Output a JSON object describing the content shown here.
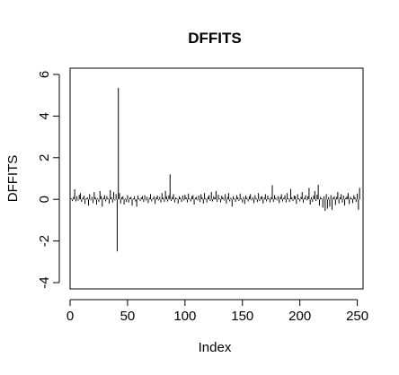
{
  "chart_data": {
    "type": "line",
    "style": "vertical lines from zero (R type='h')",
    "title": "DFFITS",
    "xlabel": "Index",
    "ylabel": "DFFITS",
    "xlim": [
      0,
      255
    ],
    "ylim": [
      -4.3,
      6.3
    ],
    "grid": false,
    "xticks": [
      0,
      50,
      100,
      150,
      200,
      250
    ],
    "yticks": [
      -4,
      -2,
      0,
      2,
      4,
      6
    ],
    "n": 252,
    "values": [
      0.05,
      -0.08,
      0.12,
      0.48,
      -0.1,
      0.15,
      -0.06,
      0.22,
      0.3,
      -0.12,
      0.08,
      0.18,
      -0.22,
      0.05,
      0.1,
      -0.3,
      0.25,
      -0.05,
      0.12,
      -0.18,
      0.35,
      0.1,
      -0.25,
      0.05,
      -0.12,
      0.4,
      0.15,
      -0.35,
      0.08,
      0.2,
      -0.1,
      0.15,
      0.05,
      -0.2,
      0.45,
      0.1,
      -0.15,
      0.35,
      -0.05,
      0.25,
      -2.5,
      5.35,
      0.3,
      -0.2,
      0.1,
      0.15,
      -0.25,
      0.05,
      -0.12,
      0.2,
      -0.15,
      0.08,
      0.12,
      -0.3,
      0.05,
      0.15,
      -0.1,
      -0.35,
      0.18,
      0.05,
      -0.08,
      0.1,
      0.15,
      -0.12,
      0.2,
      -0.05,
      0.12,
      -0.18,
      0.08,
      0.25,
      -0.1,
      0.05,
      0.15,
      -0.22,
      0.1,
      0.18,
      -0.05,
      0.12,
      -0.15,
      0.3,
      0.08,
      -0.12,
      0.4,
      0.15,
      -0.1,
      0.2,
      1.2,
      -0.08,
      0.12,
      0.25,
      -0.15,
      0.1,
      0.05,
      -0.2,
      0.15,
      0.08,
      -0.12,
      0.18,
      -0.05,
      0.22,
      0.1,
      -0.15,
      0.28,
      0.05,
      -0.1,
      0.15,
      0.2,
      -0.25,
      0.08,
      0.12,
      -0.05,
      0.18,
      -0.12,
      0.25,
      0.1,
      -0.2,
      0.3,
      0.05,
      -0.15,
      0.12,
      0.2,
      -0.08,
      0.35,
      -0.1,
      0.15,
      0.08,
      0.4,
      -0.12,
      0.22,
      0.05,
      -0.15,
      0.18,
      0.1,
      -0.05,
      0.25,
      -0.2,
      0.12,
      0.3,
      -0.1,
      0.08,
      -0.35,
      0.15,
      0.05,
      -0.12,
      0.2,
      0.1,
      -0.08,
      0.28,
      0.05,
      -0.15,
      0.12,
      -0.22,
      0.18,
      0.08,
      -0.1,
      0.15,
      0.25,
      -0.05,
      0.1,
      -0.18,
      0.2,
      0.05,
      -0.12,
      0.3,
      -0.08,
      0.12,
      0.15,
      -0.2,
      0.08,
      0.25,
      -0.1,
      0.18,
      0.05,
      -0.15,
      0.1,
      0.68,
      -0.12,
      0.2,
      0.08,
      -0.05,
      0.15,
      -0.18,
      0.12,
      0.25,
      -0.1,
      0.08,
      0.2,
      -0.15,
      0.3,
      0.05,
      -0.12,
      0.5,
      0.1,
      -0.08,
      0.18,
      0.15,
      -0.22,
      0.25,
      0.05,
      -0.1,
      0.12,
      0.35,
      -0.15,
      0.08,
      0.2,
      -0.05,
      0.15,
      0.55,
      -0.25,
      0.1,
      -0.12,
      0.18,
      0.4,
      -0.08,
      0.22,
      0.7,
      -0.3,
      0.12,
      0.05,
      -0.4,
      0.15,
      -0.55,
      0.25,
      -0.45,
      0.1,
      -0.35,
      0.2,
      -0.5,
      0.08,
      0.15,
      -0.28,
      0.12,
      0.35,
      -0.2,
      0.1,
      0.25,
      -0.15,
      0.18,
      -0.3,
      0.08,
      0.15,
      0.3,
      -0.22,
      0.12,
      0.05,
      -0.18,
      0.2,
      0.1,
      -0.12,
      0.28,
      -0.5,
      0.55
    ]
  }
}
